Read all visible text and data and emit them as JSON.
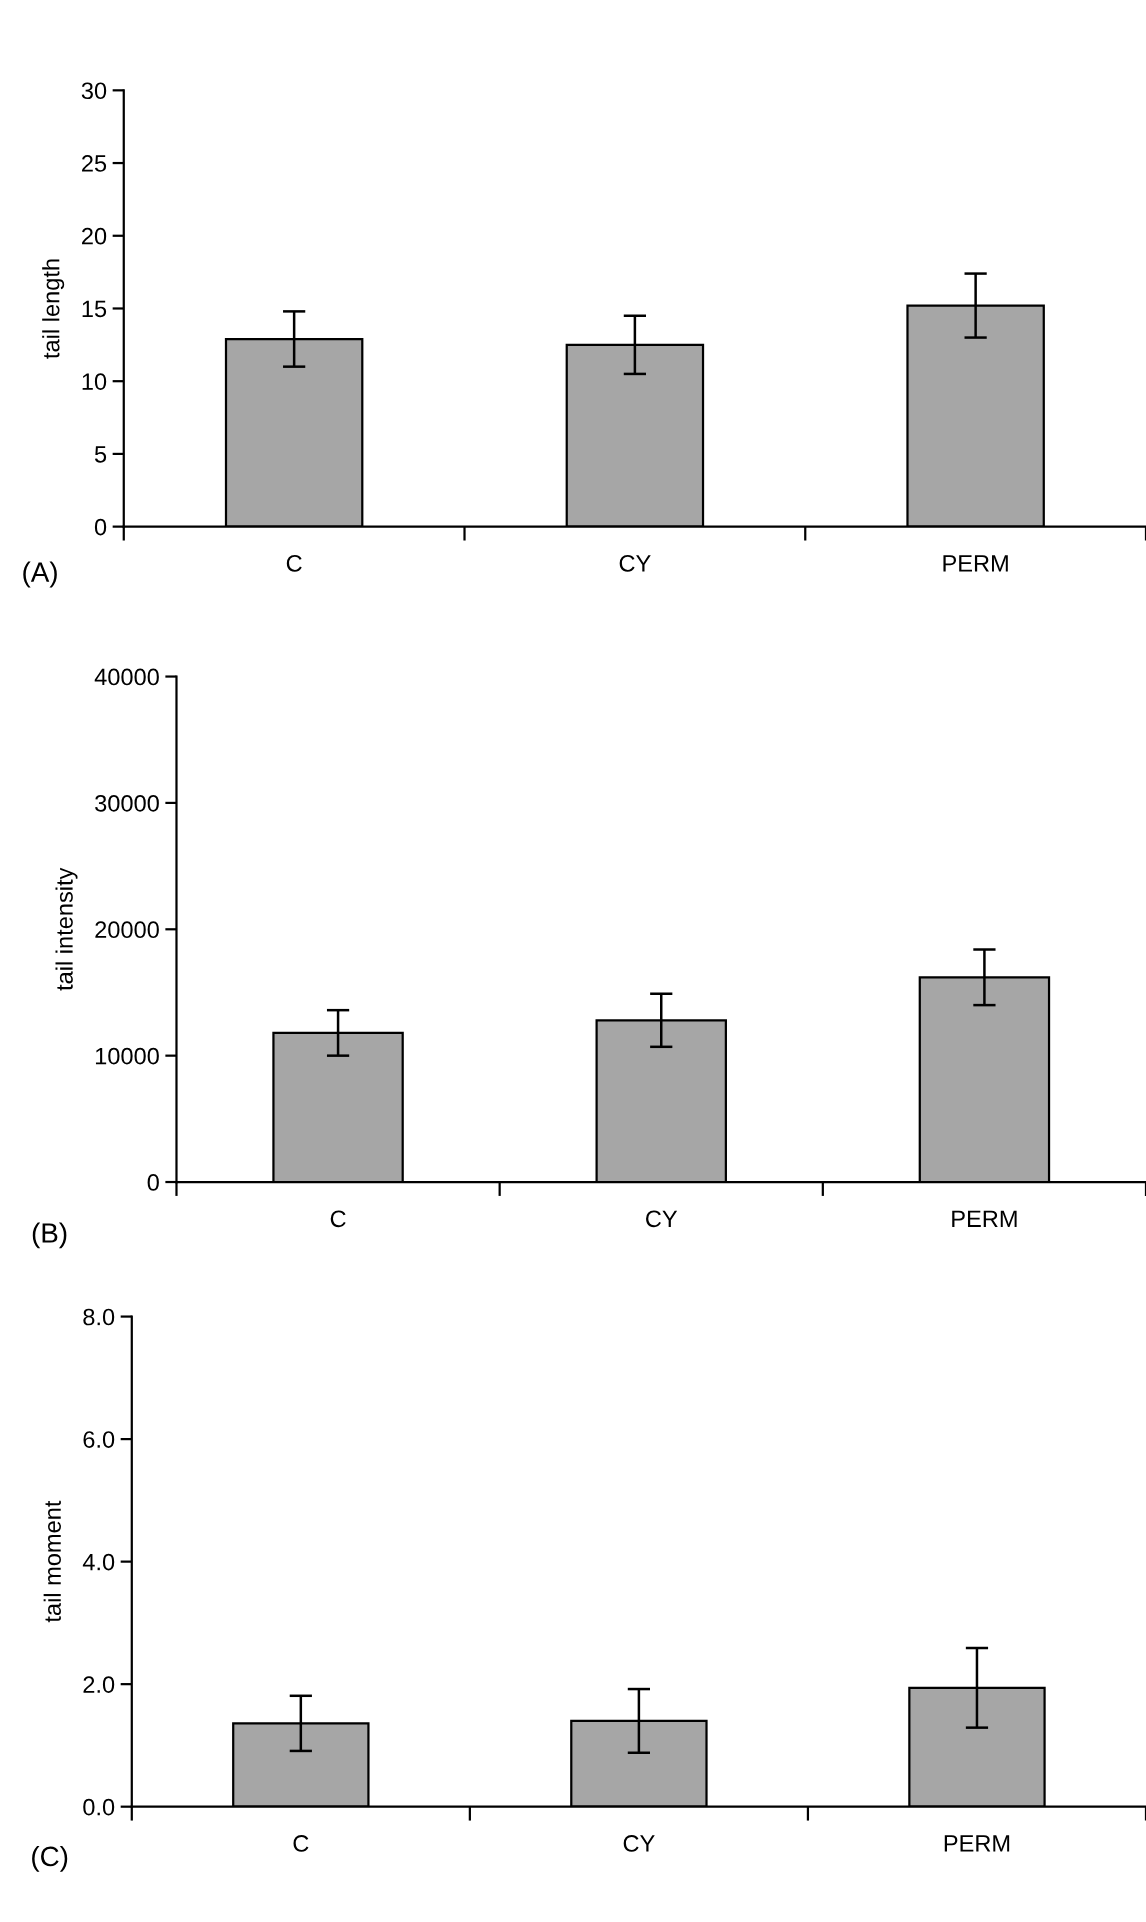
{
  "chart_data": [
    {
      "type": "bar",
      "ylabel": "tail length",
      "annotations": [
        "(A)"
      ],
      "categories": [
        "C",
        "CY",
        "PERM"
      ],
      "color": "#a6a6a6",
      "values": [
        12.9,
        12.5,
        15.2
      ],
      "errors": [
        1.9,
        2.0,
        2.2
      ],
      "ylim": [
        0,
        30
      ],
      "yticks": [
        0,
        5,
        10,
        15,
        20,
        25,
        30
      ],
      "grid": false
    },
    {
      "type": "bar",
      "ylabel": "tail intensity",
      "annotations": [
        "(B)"
      ],
      "categories": [
        "C",
        "CY",
        "PERM"
      ],
      "color": "#a6a6a6",
      "values": [
        11800,
        12800,
        16200
      ],
      "errors": [
        1800,
        2100,
        2200
      ],
      "ylim": [
        0,
        40000
      ],
      "yticks": [
        0,
        10000,
        20000,
        30000,
        40000
      ],
      "grid": false
    },
    {
      "type": "bar",
      "ylabel": "tail moment",
      "annotations": [
        "(C)"
      ],
      "categories": [
        "C",
        "CY",
        "PERM"
      ],
      "color": "#a6a6a6",
      "values": [
        1.36,
        1.4,
        1.94
      ],
      "errors": [
        0.45,
        0.52,
        0.65
      ],
      "ylim": [
        0,
        8
      ],
      "yticks": [
        {
          "value": 0,
          "label": "0.0"
        },
        {
          "value": 2,
          "label": "2.0"
        },
        {
          "value": 4,
          "label": "4.0"
        },
        {
          "value": 6,
          "label": "6.0"
        },
        {
          "value": 8,
          "label": "8.0"
        }
      ],
      "grid": false
    }
  ]
}
